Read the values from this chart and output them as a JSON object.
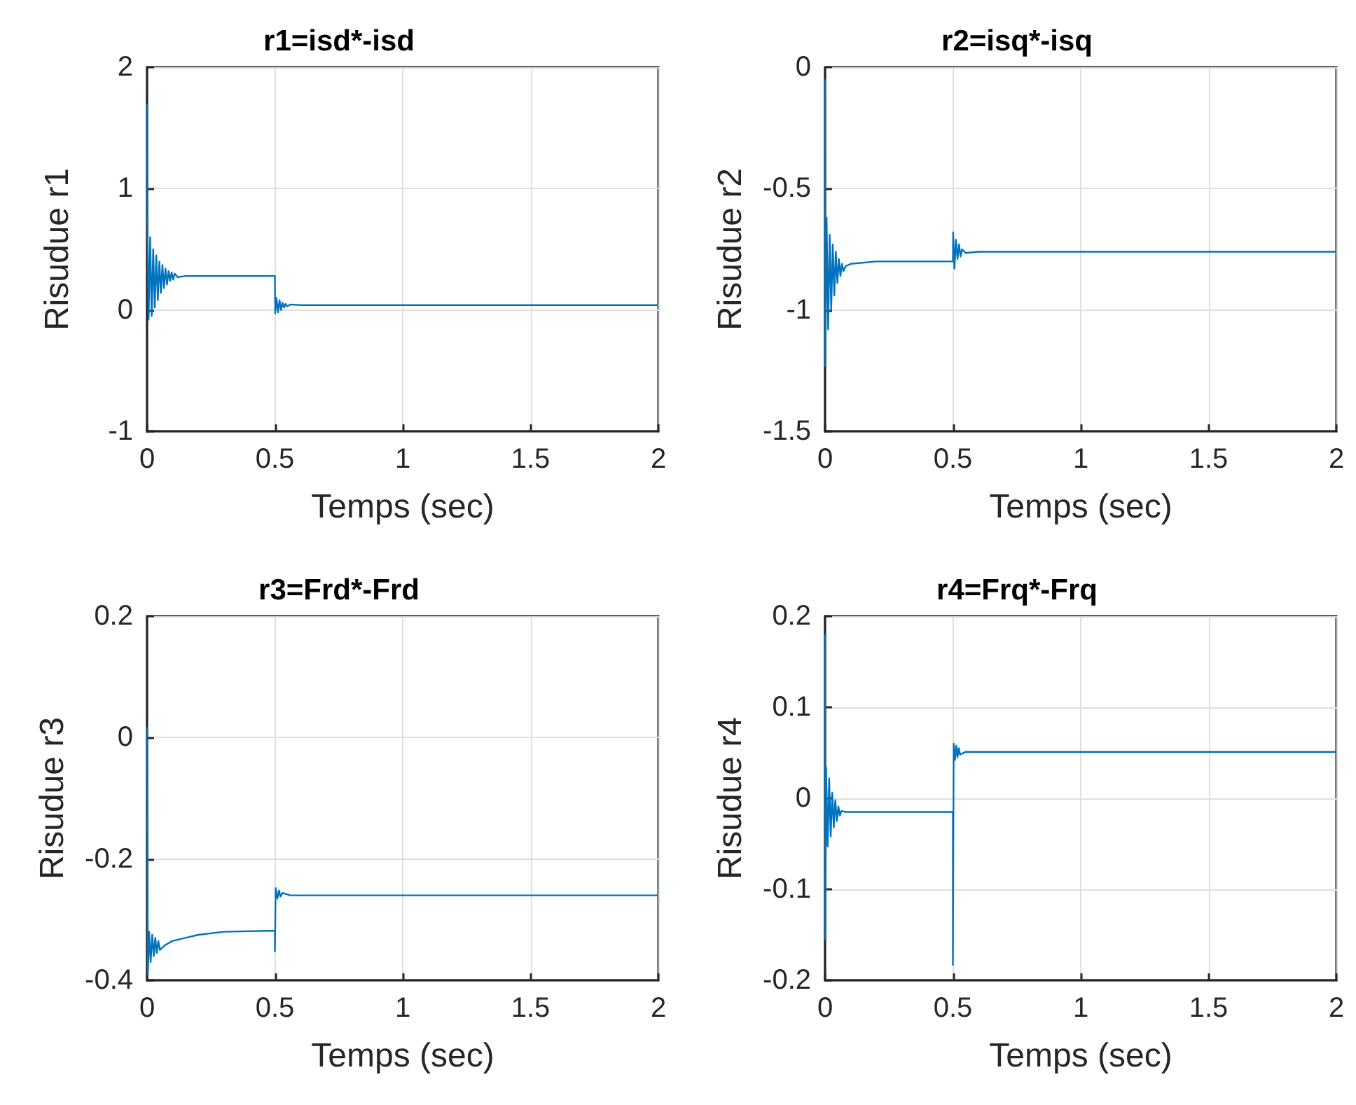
{
  "chart_data": [
    {
      "type": "line",
      "title": "r1=isd*-isd",
      "xlabel": "Temps (sec)",
      "ylabel": "Risudue r1",
      "color": "#0072bd",
      "marker": "none",
      "grid": true,
      "x": [
        0,
        0.001,
        0.006,
        0.012,
        0.018,
        0.024,
        0.03,
        0.036,
        0.042,
        0.048,
        0.054,
        0.06,
        0.066,
        0.072,
        0.078,
        0.084,
        0.09,
        0.096,
        0.102,
        0.108,
        0.12,
        0.15,
        0.5,
        0.501,
        0.506,
        0.512,
        0.518,
        0.524,
        0.53,
        0.536,
        0.542,
        0.548,
        0.56,
        0.6,
        2
      ],
      "values": [
        1.7,
        0.75,
        -0.08,
        0.6,
        -0.05,
        0.5,
        0.02,
        0.45,
        0.08,
        0.4,
        0.14,
        0.37,
        0.18,
        0.34,
        0.21,
        0.32,
        0.24,
        0.31,
        0.25,
        0.3,
        0.27,
        0.28,
        0.28,
        -0.03,
        0.1,
        -0.02,
        0.08,
        0,
        0.06,
        0.02,
        0.05,
        0.03,
        0.045,
        0.04,
        0.04
      ],
      "xlim": [
        0,
        2
      ],
      "xticks": [
        0,
        0.5,
        1,
        1.5,
        2
      ],
      "ylim": [
        -1,
        2
      ],
      "yticks": [
        -1,
        0,
        1,
        2
      ]
    },
    {
      "type": "line",
      "title": "r2=isq*-isq",
      "xlabel": "Temps (sec)",
      "ylabel": "Risudue r2",
      "color": "#0072bd",
      "marker": "none",
      "grid": true,
      "x": [
        0,
        0.001,
        0.006,
        0.012,
        0.018,
        0.024,
        0.03,
        0.036,
        0.042,
        0.048,
        0.054,
        0.06,
        0.066,
        0.072,
        0.08,
        0.1,
        0.2,
        0.5,
        0.501,
        0.506,
        0.512,
        0.518,
        0.524,
        0.53,
        0.536,
        0.55,
        0.6,
        2
      ],
      "values": [
        -0.05,
        -1.23,
        -0.62,
        -1.08,
        -0.69,
        -1.0,
        -0.73,
        -0.94,
        -0.76,
        -0.89,
        -0.79,
        -0.86,
        -0.81,
        -0.84,
        -0.82,
        -0.81,
        -0.8,
        -0.8,
        -0.68,
        -0.83,
        -0.71,
        -0.79,
        -0.73,
        -0.78,
        -0.75,
        -0.765,
        -0.76,
        -0.76
      ],
      "xlim": [
        0,
        2
      ],
      "xticks": [
        0,
        0.5,
        1,
        1.5,
        2
      ],
      "ylim": [
        -1.5,
        0
      ],
      "yticks": [
        -1.5,
        -1,
        -0.5,
        0
      ]
    },
    {
      "type": "line",
      "title": "r3=Frd*-Frd",
      "xlabel": "Temps (sec)",
      "ylabel": "Risudue r3",
      "color": "#0072bd",
      "marker": "none",
      "grid": true,
      "x": [
        0,
        0.003,
        0.008,
        0.014,
        0.02,
        0.026,
        0.032,
        0.038,
        0.044,
        0.05,
        0.07,
        0.1,
        0.2,
        0.3,
        0.5,
        0.5,
        0.503,
        0.51,
        0.516,
        0.522,
        0.53,
        0.56,
        2
      ],
      "values": [
        0.017,
        -0.39,
        -0.32,
        -0.37,
        -0.325,
        -0.36,
        -0.33,
        -0.355,
        -0.335,
        -0.35,
        -0.342,
        -0.335,
        -0.325,
        -0.32,
        -0.318,
        -0.352,
        -0.248,
        -0.265,
        -0.252,
        -0.262,
        -0.256,
        -0.26,
        -0.26
      ],
      "xlim": [
        0,
        2
      ],
      "xticks": [
        0,
        0.5,
        1,
        1.5,
        2
      ],
      "ylim": [
        -0.4,
        0.2
      ],
      "yticks": [
        -0.4,
        -0.2,
        0,
        0.2
      ]
    },
    {
      "type": "line",
      "title": "r4=Frq*-Frq",
      "xlabel": "Temps (sec)",
      "ylabel": "Risudue r4",
      "color": "#0072bd",
      "marker": "none",
      "grid": true,
      "x": [
        0,
        0.001,
        0.004,
        0.01,
        0.016,
        0.022,
        0.028,
        0.034,
        0.04,
        0.046,
        0.052,
        0.058,
        0.064,
        0.08,
        0.5,
        0.5,
        0.503,
        0.508,
        0.513,
        0.518,
        0.523,
        0.528,
        0.55,
        2
      ],
      "values": [
        0.18,
        -0.155,
        0.034,
        -0.053,
        0.022,
        -0.042,
        0.006,
        -0.032,
        -0.002,
        -0.025,
        -0.009,
        -0.019,
        -0.014,
        -0.015,
        -0.015,
        -0.183,
        0.06,
        0.042,
        0.058,
        0.045,
        0.055,
        0.048,
        0.051,
        0.051
      ],
      "xlim": [
        0,
        2
      ],
      "xticks": [
        0,
        0.5,
        1,
        1.5,
        2
      ],
      "ylim": [
        -0.2,
        0.2
      ],
      "yticks": [
        -0.2,
        -0.1,
        0,
        0.1,
        0.2
      ]
    }
  ]
}
